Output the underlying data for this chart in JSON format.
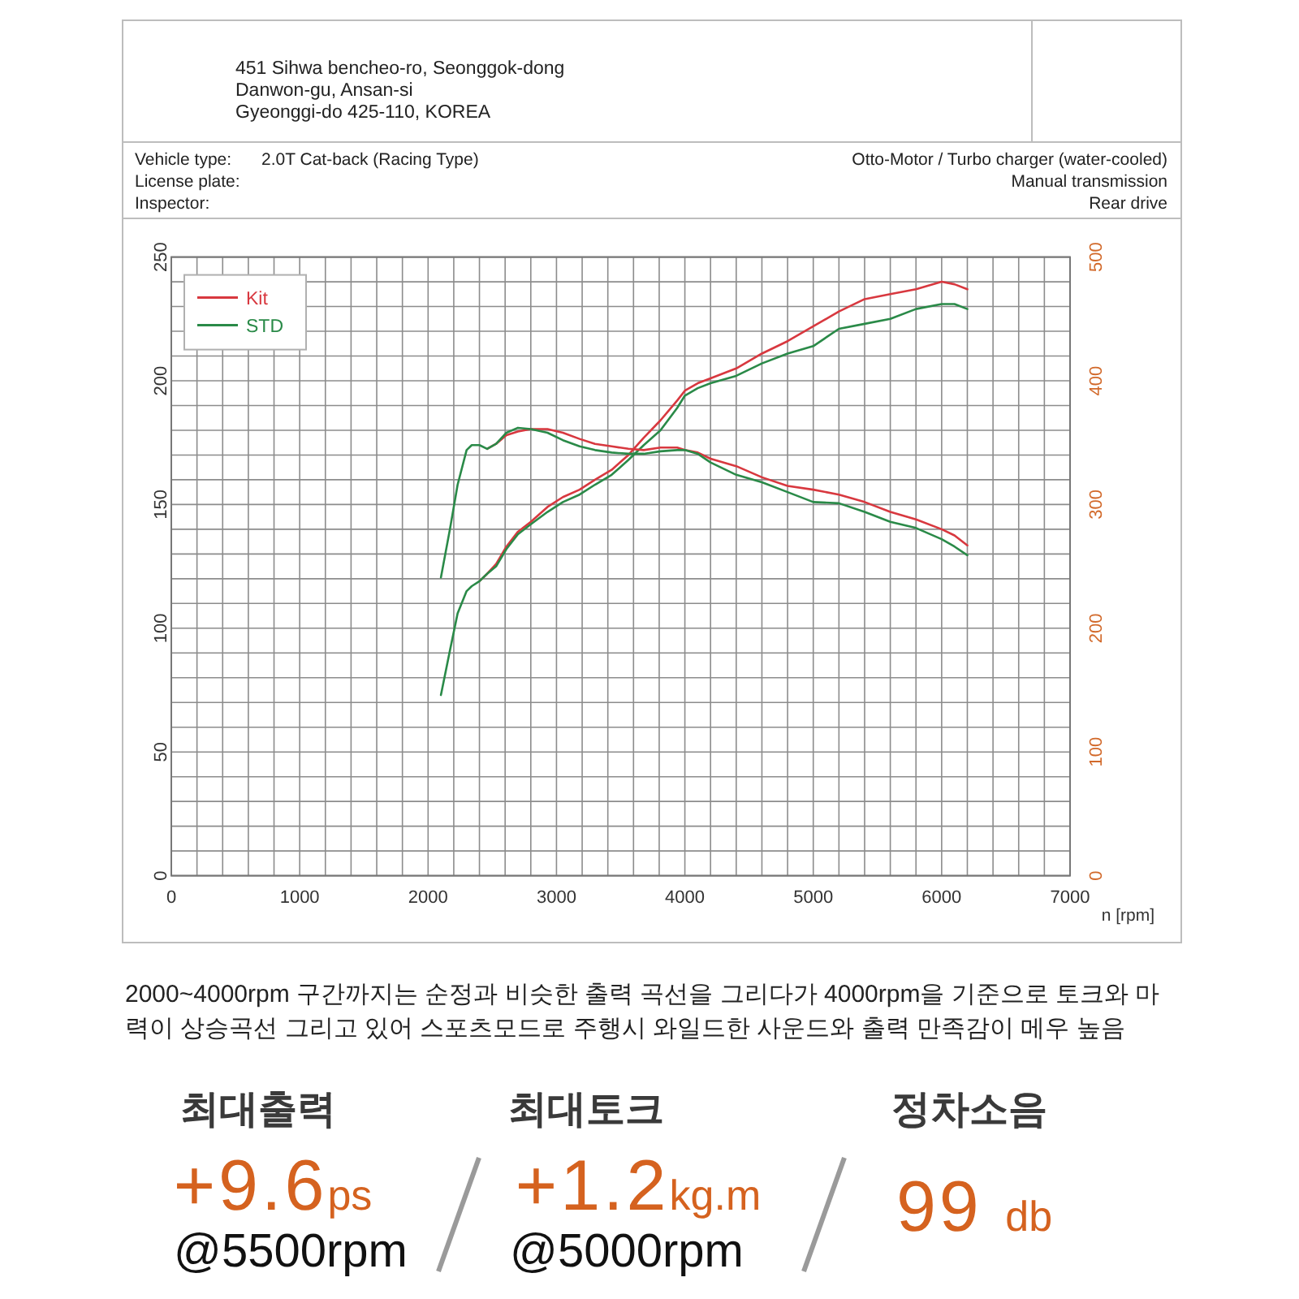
{
  "chart_data": {
    "type": "line",
    "xlabel": "n [rpm]",
    "xlim": [
      0,
      7000
    ],
    "xticks": [
      0,
      {
        "value": 200,
        "label": null
      },
      {
        "value": 400,
        "label": null
      },
      {
        "value": 600,
        "label": null
      },
      {
        "value": 800,
        "label": null
      },
      1000,
      {
        "value": 1200,
        "label": null
      },
      {
        "value": 1400,
        "label": null
      },
      {
        "value": 1600,
        "label": null
      },
      {
        "value": 1800,
        "label": null
      },
      2000,
      {
        "value": 2200,
        "label": null
      },
      {
        "value": 2400,
        "label": null
      },
      {
        "value": 2600,
        "label": null
      },
      {
        "value": 2800,
        "label": null
      },
      3000,
      {
        "value": 3200,
        "label": null
      },
      {
        "value": 3400,
        "label": null
      },
      {
        "value": 3600,
        "label": null
      },
      {
        "value": 3800,
        "label": null
      },
      4000,
      {
        "value": 4200,
        "label": null
      },
      {
        "value": 4400,
        "label": null
      },
      {
        "value": 4600,
        "label": null
      },
      {
        "value": 4800,
        "label": null
      },
      5000,
      {
        "value": 5200,
        "label": null
      },
      {
        "value": 5400,
        "label": null
      },
      {
        "value": 5600,
        "label": null
      },
      {
        "value": 5800,
        "label": null
      },
      6000,
      {
        "value": 6200,
        "label": null
      },
      {
        "value": 6400,
        "label": null
      },
      {
        "value": 6600,
        "label": null
      },
      {
        "value": 6800,
        "label": null
      },
      7000
    ],
    "ylim": [
      0,
      250
    ],
    "yticks": [
      0,
      {
        "value": 10,
        "label": null
      },
      {
        "value": 20,
        "label": null
      },
      {
        "value": 30,
        "label": null
      },
      {
        "value": 40,
        "label": null
      },
      50,
      {
        "value": 60,
        "label": null
      },
      {
        "value": 70,
        "label": null
      },
      {
        "value": 80,
        "label": null
      },
      {
        "value": 90,
        "label": null
      },
      100,
      {
        "value": 110,
        "label": null
      },
      {
        "value": 120,
        "label": null
      },
      {
        "value": 130,
        "label": null
      },
      {
        "value": 140,
        "label": null
      },
      150,
      {
        "value": 160,
        "label": null
      },
      {
        "value": 170,
        "label": null
      },
      {
        "value": 180,
        "label": null
      },
      {
        "value": 190,
        "label": null
      },
      200,
      {
        "value": 210,
        "label": null
      },
      {
        "value": 220,
        "label": null
      },
      {
        "value": 230,
        "label": null
      },
      {
        "value": 240,
        "label": null
      },
      250
    ],
    "y2lim": [
      0,
      500
    ],
    "y2ticks": [
      0,
      100,
      200,
      300,
      400,
      500
    ],
    "grid": true,
    "legend": "top left",
    "x": [
      2100,
      2170,
      2230,
      2300,
      2340,
      2400,
      2460,
      2530,
      2610,
      2700,
      2800,
      2930,
      3050,
      3180,
      3300,
      3430,
      3560,
      3680,
      3810,
      3940,
      4000,
      4100,
      4200,
      4400,
      4600,
      4800,
      5000,
      5200,
      5400,
      5600,
      5800,
      6000,
      6100,
      6200
    ],
    "series": [
      {
        "name": "Kit",
        "color": "#d8383f",
        "values": [
          null,
          null,
          null,
          null,
          null,
          119,
          122,
          126,
          133,
          139,
          143,
          149,
          153,
          156,
          160,
          164,
          170,
          177,
          184,
          192,
          196,
          199,
          201,
          205,
          211,
          216,
          222,
          228,
          233,
          235,
          237,
          240,
          239,
          237
        ]
      },
      {
        "name": "STD",
        "color": "#2a8a48",
        "values": [
          73,
          91,
          106,
          115,
          117,
          119,
          122,
          125,
          132,
          138,
          142,
          147,
          151,
          154,
          158,
          162,
          168,
          174,
          180,
          189,
          194,
          197,
          199,
          202,
          207,
          211,
          214,
          221,
          223,
          225,
          229,
          231,
          231,
          229
        ]
      },
      {
        "color": "#d8383f",
        "axis": "y2",
        "values": [
          null,
          null,
          null,
          null,
          null,
          null,
          345,
          349,
          356,
          359,
          361,
          361,
          358,
          353,
          349,
          347,
          345,
          344,
          346,
          346,
          344,
          342,
          337,
          331,
          322,
          315,
          312,
          308,
          302,
          294,
          288,
          280,
          275,
          267
        ]
      },
      {
        "color": "#2a8a48",
        "axis": "y2",
        "values": [
          241,
          280,
          316,
          344,
          348,
          348,
          345,
          349,
          358,
          362,
          361,
          358,
          352,
          347,
          344,
          342,
          341,
          341,
          343,
          344,
          344,
          341,
          334,
          324,
          318,
          310,
          302,
          301,
          294,
          286,
          281,
          272,
          266,
          259
        ]
      }
    ],
    "annotations": [
      "451 Sihwa bencheo-ro, Seonggok-dong",
      "Danwon-gu, Ansan-si",
      "Gyeonggi-do 425-110, KOREA",
      "Vehicle type:",
      "2.0T Cat-back (Racing Type)",
      "License plate:",
      "Inspector:",
      "Otto-Motor / Turbo charger (water-cooled)",
      "Manual transmission",
      "Rear drive",
      "2000~4000rpm 구간까지는 순정과 비슷한 출력 곡선을 그리다가 4000rpm을 기준으로 토크와 마력이 상승곡선 그리고 있어 스포츠모드로 주행시 와일드한 사운드와 출력 만족감이 메우 높음",
      "최대출력",
      "+9.6ps",
      "@5500rpm",
      "최대토크",
      "+1.2kg.m",
      "@5000rpm",
      "정차소음",
      "99 db"
    ]
  }
}
